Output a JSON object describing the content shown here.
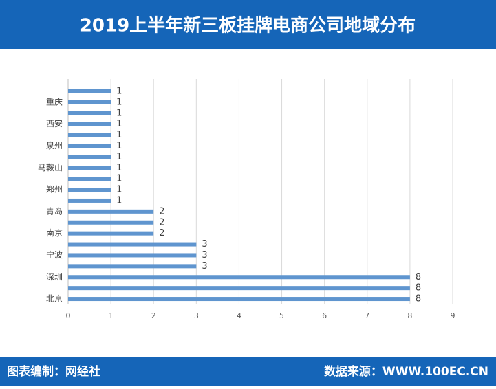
{
  "chart_data": {
    "type": "barh",
    "title": "2019上半年新三板挂牌电商公司地域分布",
    "categories": [
      null,
      "重庆",
      null,
      "西安",
      null,
      "泉州",
      null,
      "马鞍山",
      null,
      "郑州",
      null,
      "青岛",
      null,
      "南京",
      null,
      "宁波",
      null,
      "深圳",
      null,
      "北京"
    ],
    "values": [
      1,
      1,
      1,
      1,
      1,
      1,
      1,
      1,
      1,
      1,
      1,
      2,
      2,
      2,
      3,
      3,
      3,
      8,
      8,
      8
    ],
    "color": "#5f95cf",
    "xlim": [
      0,
      9
    ],
    "xticks": [
      0,
      1,
      2,
      3,
      4,
      5,
      6,
      7,
      8,
      9
    ],
    "grid": true
  },
  "footer": {
    "left": "图表编制：网经社",
    "right": "数据来源：WWW.100EC.CN"
  }
}
